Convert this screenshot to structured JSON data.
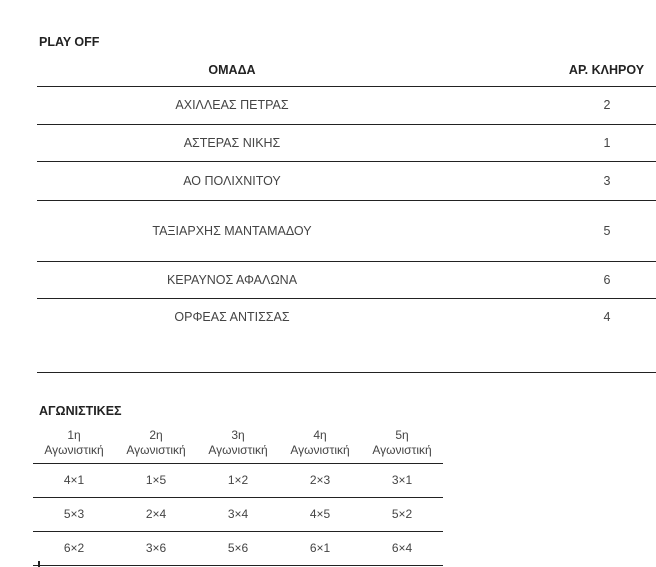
{
  "playoff": {
    "title": "PLAY OFF",
    "headers": {
      "team": "ΟΜΑΔΑ",
      "draw": "ΑΡ. ΚΛΗΡΟΥ"
    },
    "rows": [
      {
        "team": "ΑΧΙΛΛΕΑΣ ΠΕΤΡΑΣ",
        "draw": "2"
      },
      {
        "team": "ΑΣΤΕΡΑΣ ΝΙΚΗΣ",
        "draw": "1"
      },
      {
        "team": "ΑΟ ΠΟΛΙΧΝΙΤΟΥ",
        "draw": "3"
      },
      {
        "team": "ΤΑΞΙΑΡΧΗΣ  ΜΑΝΤΑΜΑΔΟΥ",
        "draw": "5"
      },
      {
        "team": "ΚΕΡΑΥΝΟΣ ΑΦΑΛΩΝΑ",
        "draw": "6"
      },
      {
        "team": "ΟΡΦΕΑΣ ΑΝΤΙΣΣΑΣ",
        "draw": "4"
      }
    ]
  },
  "matchdays": {
    "title": "ΑΓΩΝΙΣΤΙΚΕΣ",
    "headers": [
      {
        "num": "1η",
        "label": "Αγωνιστική"
      },
      {
        "num": "2η",
        "label": "Αγωνιστική"
      },
      {
        "num": "3η",
        "label": "Αγωνιστική"
      },
      {
        "num": "4η",
        "label": "Αγωνιστική"
      },
      {
        "num": "5η",
        "label": "Αγωνιστική"
      }
    ],
    "rows": [
      [
        "4×1",
        "1×5",
        "1×2",
        "2×3",
        "3×1"
      ],
      [
        "5×3",
        "2×4",
        "3×4",
        "4×5",
        "5×2"
      ],
      [
        "6×2",
        "3×6",
        "5×6",
        "6×1",
        "6×4"
      ]
    ]
  }
}
